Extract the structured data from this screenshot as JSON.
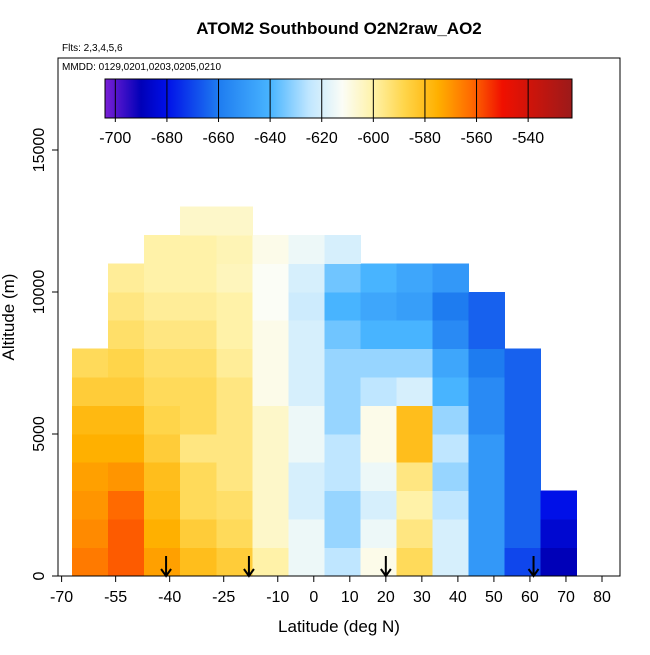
{
  "chart_data": {
    "type": "heatmap",
    "title": "ATOM2 Southbound O2N2raw_AO2",
    "subtitle": "Flts: 2,3,4,5,6",
    "annotation": "MMDD: 0129,0201,0203,0205,0210",
    "x_label": "Latitude (deg N)",
    "y_label": "Altitude (m)",
    "xlim": [
      -71,
      85
    ],
    "ylim": [
      0,
      18240
    ],
    "xticks": [
      -70,
      -55,
      -40,
      -25,
      -10,
      0,
      10,
      20,
      30,
      40,
      50,
      60,
      70,
      80
    ],
    "yticks": [
      0,
      5000,
      10000,
      15000
    ],
    "x_edges": [
      -67,
      -57,
      -47,
      -37,
      -27,
      -17,
      -7,
      3,
      13,
      23,
      33,
      43,
      53,
      63,
      73
    ],
    "y_edges": [
      0,
      1000,
      2000,
      3000,
      4000,
      5000,
      6000,
      7000,
      8000,
      9000,
      10000,
      11000,
      12000,
      13000
    ],
    "z": [
      [
        -565,
        -560,
        -572,
        -580,
        -585,
        -600,
        -615,
        -625,
        -610,
        -590,
        -620,
        -650,
        -670,
        -690
      ],
      [
        -568,
        -560,
        -575,
        -585,
        -590,
        -605,
        -615,
        -630,
        -615,
        -595,
        -620,
        -650,
        -665,
        -685
      ],
      [
        -570,
        -562,
        -578,
        -590,
        -592,
        -605,
        -620,
        -630,
        -620,
        -600,
        -625,
        -650,
        -665,
        -680
      ],
      [
        -572,
        -570,
        -580,
        -590,
        -595,
        -605,
        -620,
        -625,
        -615,
        -595,
        -630,
        -650,
        -665,
        null
      ],
      [
        -575,
        -575,
        -585,
        -595,
        -595,
        -605,
        -615,
        -625,
        -610,
        -580,
        -625,
        -650,
        -665,
        null
      ],
      [
        -578,
        -578,
        -588,
        -590,
        -595,
        -605,
        -615,
        -630,
        -610,
        -580,
        -630,
        -655,
        -665,
        null
      ],
      [
        -585,
        -585,
        -590,
        -590,
        -595,
        -610,
        -620,
        -630,
        -625,
        -620,
        -640,
        -655,
        -665,
        null
      ],
      [
        -590,
        -588,
        -592,
        -592,
        -598,
        -610,
        -620,
        -630,
        -630,
        -630,
        -645,
        -660,
        -665,
        null
      ],
      [
        null,
        -592,
        -595,
        -595,
        -600,
        -610,
        -620,
        -635,
        -640,
        -640,
        -655,
        -665,
        null,
        null
      ],
      [
        null,
        -595,
        -598,
        -598,
        -600,
        -612,
        -622,
        -640,
        -645,
        -648,
        -660,
        -665,
        null,
        null
      ],
      [
        null,
        -598,
        -600,
        -600,
        -603,
        -612,
        -620,
        -635,
        -640,
        -645,
        -650,
        null,
        null,
        null
      ],
      [
        null,
        null,
        -600,
        -600,
        -602,
        -610,
        -615,
        -620,
        null,
        null,
        null,
        null,
        null,
        null
      ],
      [
        null,
        null,
        null,
        -605,
        -605,
        null,
        null,
        null,
        null,
        null,
        null,
        null,
        null,
        null
      ]
    ],
    "clim": [
      -704,
      -523
    ],
    "cticks": [
      -700,
      -680,
      -660,
      -640,
      -620,
      -600,
      -580,
      -560,
      -540
    ],
    "colorscale": [
      [
        -704,
        "#7a1fd6"
      ],
      [
        -690,
        "#0000b8"
      ],
      [
        -680,
        "#0010e8"
      ],
      [
        -660,
        "#1e7cf0"
      ],
      [
        -640,
        "#48b4ff"
      ],
      [
        -625,
        "#bfe6ff"
      ],
      [
        -612,
        "#fbfdf6"
      ],
      [
        -600,
        "#fff2a8"
      ],
      [
        -588,
        "#ffd54a"
      ],
      [
        -575,
        "#ffb000"
      ],
      [
        -562,
        "#ff6a00"
      ],
      [
        -550,
        "#f01000"
      ],
      [
        -523,
        "#9c1a1a"
      ]
    ],
    "flight_markers": [
      -41,
      -18,
      20,
      61
    ]
  }
}
